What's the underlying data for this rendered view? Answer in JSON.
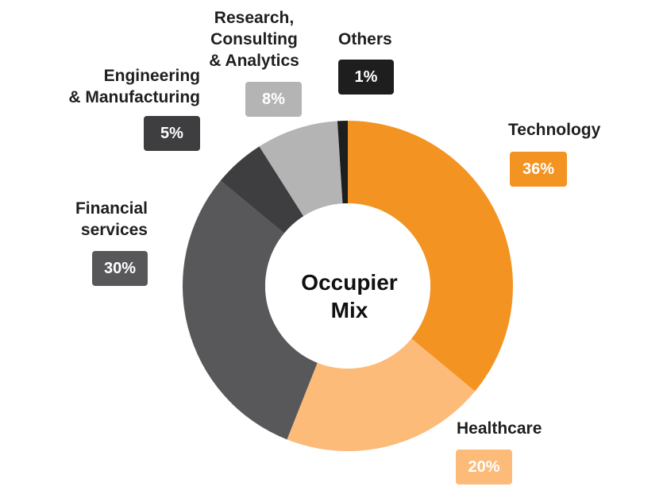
{
  "chart_data": {
    "type": "pie",
    "title": "Occupier Mix",
    "categories": [
      "Technology",
      "Healthcare",
      "Financial services",
      "Engineering & Manufacturing",
      "Research, Consulting & Analytics",
      "Others"
    ],
    "values": [
      36,
      20,
      30,
      5,
      8,
      1
    ],
    "value_labels": [
      "36%",
      "20%",
      "30%",
      "5%",
      "8%",
      "1%"
    ],
    "colors": [
      "#F39322",
      "#FCBB79",
      "#58585A",
      "#3E3E40",
      "#B4B4B4",
      "#1E1E1E"
    ],
    "donut": true
  },
  "labels": {
    "center": [
      "Occupier",
      "Mix"
    ],
    "technology": [
      "Technology"
    ],
    "healthcare": [
      "Healthcare"
    ],
    "financial": [
      "Financial",
      "services"
    ],
    "engineering": [
      "Engineering",
      "& Manufacturing"
    ],
    "research": [
      "Research,",
      "Consulting",
      "& Analytics"
    ],
    "others": [
      "Others"
    ]
  }
}
